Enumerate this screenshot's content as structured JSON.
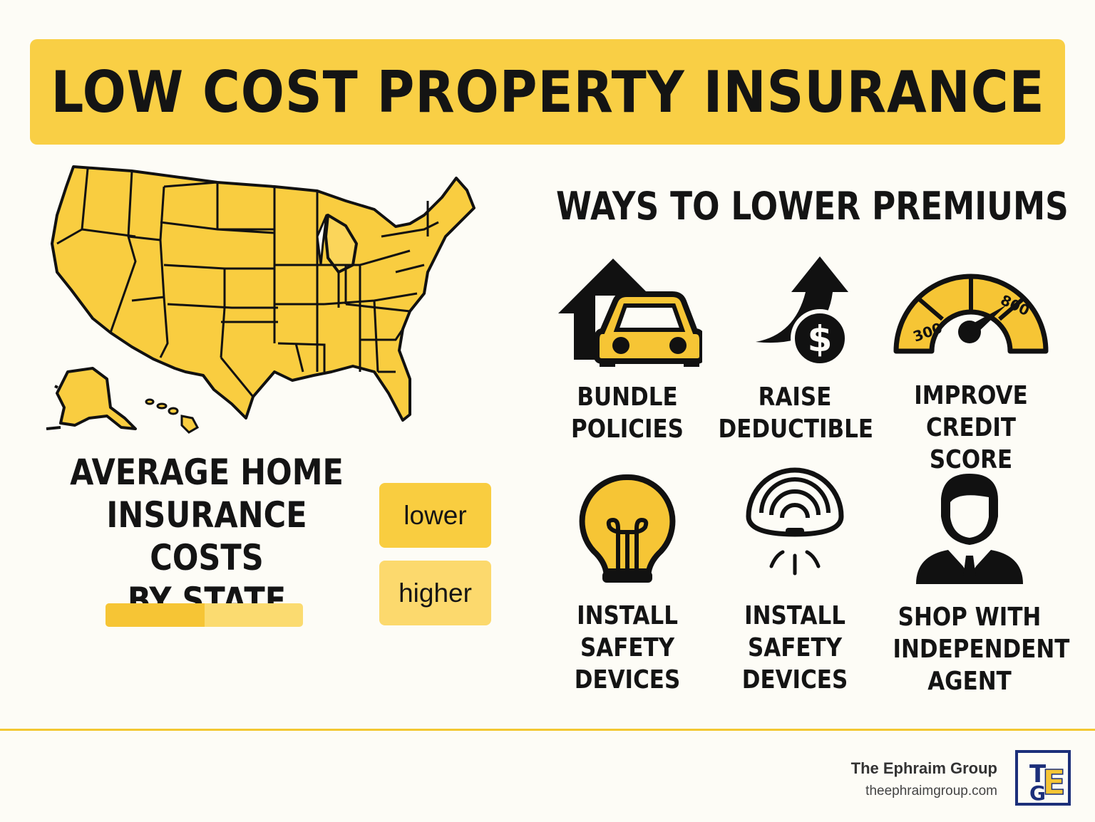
{
  "title": "LOW COST PROPERTY INSURANCE",
  "map": {
    "heading_line1": "AVERAGE HOME",
    "heading_line2": "INSURANCE COSTS",
    "heading_line3": "BY STATE",
    "legend_low": "lower",
    "legend_high": "higher",
    "scale_level": 0.5,
    "colors": {
      "low": "#f9cd40",
      "high": "#fcd96d",
      "outline": "#111111"
    }
  },
  "ways": {
    "heading": "WAYS TO LOWER PREMIUMS",
    "items": [
      {
        "icon": "house-car-icon",
        "label": "BUNDLE\nPOLICIES"
      },
      {
        "icon": "rising-arrow-dollar-icon",
        "label": "RAISE\nDEDUCTIBLE",
        "icon_text": "$"
      },
      {
        "icon": "credit-gauge-icon",
        "label": "IMPROVE\nCREDIT SCORE",
        "icon_text_left": "300",
        "icon_text_right": "800"
      },
      {
        "icon": "light-bulb-icon",
        "label": "INSTALL\nSAFETY\nDEVICES"
      },
      {
        "icon": "smoke-detector-icon",
        "label": "INSTALL\nSAFETY\nDEVICES"
      },
      {
        "icon": "agent-person-icon",
        "label": "SHOP WITH\nINDEPENDENT\nAGENT"
      }
    ]
  },
  "footer": {
    "brand": "The Ephraim Group",
    "url": "theephraimgroup.com",
    "logo_letters": [
      "T",
      "G",
      "E"
    ]
  },
  "accent": "#f9cf45"
}
